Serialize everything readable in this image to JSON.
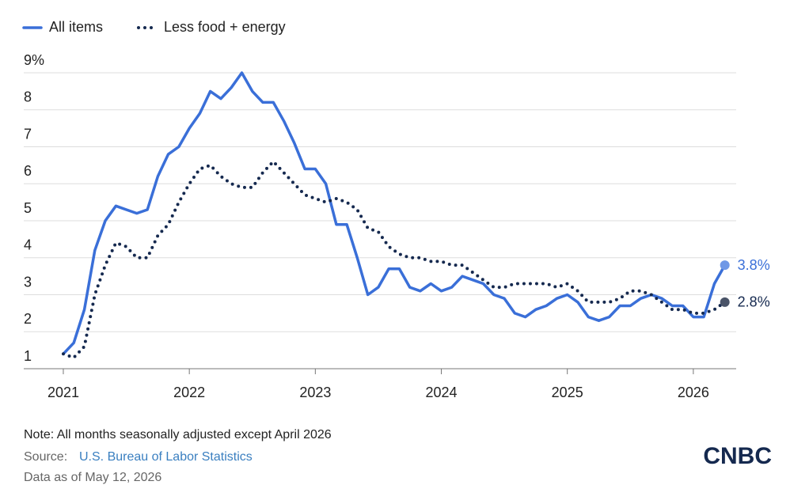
{
  "chart_data": {
    "type": "line",
    "x": [
      2021,
      2021.083,
      2021.167,
      2021.25,
      2021.333,
      2021.417,
      2021.5,
      2021.583,
      2021.667,
      2021.75,
      2021.833,
      2021.917,
      2022,
      2022.083,
      2022.167,
      2022.25,
      2022.333,
      2022.417,
      2022.5,
      2022.583,
      2022.667,
      2022.75,
      2022.833,
      2022.917,
      2023,
      2023.083,
      2023.167,
      2023.25,
      2023.333,
      2023.417,
      2023.5,
      2023.583,
      2023.667,
      2023.75,
      2023.833,
      2023.917,
      2024,
      2024.083,
      2024.167,
      2024.25,
      2024.333,
      2024.417,
      2024.5,
      2024.583,
      2024.667,
      2024.75,
      2024.833,
      2024.917,
      2025,
      2025.083,
      2025.167,
      2025.25,
      2025.333,
      2025.417,
      2025.5,
      2025.583,
      2025.667,
      2025.75,
      2025.833,
      2025.917,
      2026,
      2026.083,
      2026.167,
      2026.25
    ],
    "series": [
      {
        "name": "All items",
        "color": "#3a6fd8",
        "style": "solid",
        "values": [
          1.4,
          1.7,
          2.6,
          4.2,
          5.0,
          5.4,
          5.3,
          5.2,
          5.3,
          6.2,
          6.8,
          7.0,
          7.5,
          7.9,
          8.5,
          8.3,
          8.6,
          9.0,
          8.5,
          8.2,
          8.2,
          7.7,
          7.1,
          6.4,
          6.4,
          6.0,
          4.9,
          4.9,
          4.0,
          3.0,
          3.2,
          3.7,
          3.7,
          3.2,
          3.1,
          3.3,
          3.1,
          3.2,
          3.5,
          3.4,
          3.3,
          3.0,
          2.9,
          2.5,
          2.4,
          2.6,
          2.7,
          2.9,
          3.0,
          2.8,
          2.4,
          2.3,
          2.4,
          2.7,
          2.7,
          2.9,
          3.0,
          2.9,
          2.7,
          2.7,
          2.4,
          2.4,
          3.3,
          3.8
        ],
        "value_labels": [
          null,
          null,
          null,
          null,
          null,
          null,
          null,
          null,
          null,
          null,
          null,
          null,
          null,
          null,
          null,
          null,
          null,
          null,
          null,
          null,
          null,
          null,
          null,
          null,
          null,
          null,
          null,
          null,
          null,
          null,
          null,
          null,
          null,
          null,
          null,
          null,
          null,
          null,
          null,
          null,
          null,
          null,
          null,
          null,
          null,
          null,
          null,
          null,
          null,
          null,
          null,
          null,
          null,
          null,
          null,
          null,
          null,
          null,
          null,
          null,
          null,
          null,
          null,
          "3.8%"
        ]
      },
      {
        "name": "Less food + energy",
        "color": "#15294f",
        "style": "dotted",
        "values": [
          1.4,
          1.3,
          1.6,
          3.0,
          3.8,
          4.4,
          4.3,
          4.0,
          4.0,
          4.6,
          4.9,
          5.5,
          6.0,
          6.4,
          6.5,
          6.2,
          6.0,
          5.9,
          5.9,
          6.3,
          6.6,
          6.3,
          6.0,
          5.7,
          5.6,
          5.5,
          5.6,
          5.5,
          5.3,
          4.8,
          4.7,
          4.3,
          4.1,
          4.0,
          4.0,
          3.9,
          3.9,
          3.8,
          3.8,
          3.6,
          3.4,
          3.2,
          3.2,
          3.3,
          3.3,
          3.3,
          3.3,
          3.2,
          3.3,
          3.1,
          2.8,
          2.8,
          2.8,
          2.9,
          3.1,
          3.1,
          3.0,
          2.8,
          2.6,
          2.6,
          2.5,
          2.5,
          2.6,
          2.8
        ],
        "value_labels": [
          null,
          null,
          null,
          null,
          null,
          null,
          null,
          null,
          null,
          null,
          null,
          null,
          null,
          null,
          null,
          null,
          null,
          null,
          null,
          null,
          null,
          null,
          null,
          null,
          null,
          null,
          null,
          null,
          null,
          null,
          null,
          null,
          null,
          null,
          null,
          null,
          null,
          null,
          null,
          null,
          null,
          null,
          null,
          null,
          null,
          null,
          null,
          null,
          null,
          null,
          null,
          null,
          null,
          null,
          null,
          null,
          null,
          null,
          null,
          null,
          null,
          null,
          null,
          "2.8%"
        ]
      }
    ],
    "xlim": [
      2020.686,
      2026.34
    ],
    "xticks": [
      2021,
      2022,
      2023,
      2024,
      2025,
      2026
    ],
    "ylim": [
      1,
      9
    ],
    "yticks": [
      1,
      2,
      3,
      4,
      5,
      6,
      7,
      8,
      {
        "value": 9,
        "label": "9%"
      }
    ],
    "grid": true,
    "note": "Note: All months seasonally adjusted except April 2026",
    "source_label": "Source:",
    "source_link": "U.S. Bureau of Labor Statistics",
    "date_note": "Data as of May 12, 2026",
    "logo": "CNBC"
  }
}
